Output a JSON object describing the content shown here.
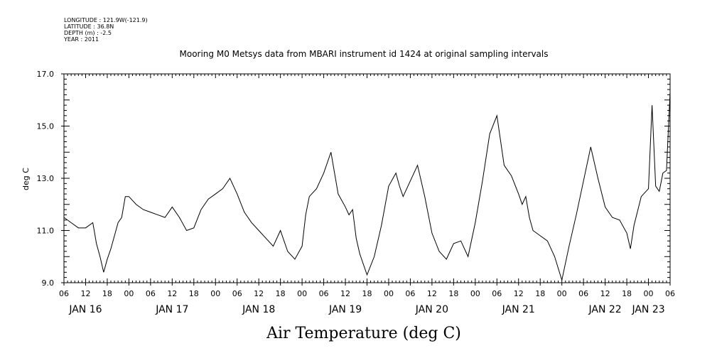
{
  "header": {
    "longitude": "LONGITUDE : 121.9W(-121.9)",
    "latitude": "LATITUDE : 36.8N",
    "depth": "DEPTH (m) : -2.5",
    "year": "YEAR : 2011"
  },
  "chart_data": {
    "type": "line",
    "title": "Mooring M0 Metsys data from MBARI instrument id 1424 at original sampling intervals",
    "xlabel": "Air Temperature (deg C)",
    "ylabel": "deg C",
    "ylim": [
      9.0,
      17.0
    ],
    "y_ticks": [
      "9.0",
      "11.0",
      "13.0",
      "15.0",
      "17.0"
    ],
    "x_range_hours": "2011-01-16 06:00 to 2011-01-23 06:00",
    "hour_tick_labels": [
      "06",
      "12",
      "18",
      "00",
      "06",
      "12",
      "18",
      "00",
      "06",
      "12",
      "18",
      "00",
      "06",
      "12",
      "18",
      "00",
      "06",
      "12",
      "18",
      "00",
      "06",
      "12",
      "18",
      "00",
      "06",
      "12",
      "18",
      "00",
      "06"
    ],
    "date_labels": [
      "JAN 16",
      "JAN 17",
      "JAN 18",
      "JAN 19",
      "JAN 20",
      "JAN 21",
      "JAN 22",
      "JAN 23"
    ],
    "grid": false,
    "series": [
      {
        "color": "#000000",
        "x": [
          "2011-01-16 06:00",
          "2011-01-16 08:00",
          "2011-01-16 10:00",
          "2011-01-16 12:00",
          "2011-01-16 14:00",
          "2011-01-16 15:00",
          "2011-01-16 16:00",
          "2011-01-16 17:00",
          "2011-01-16 18:00",
          "2011-01-16 19:00",
          "2011-01-16 20:00",
          "2011-01-16 21:00",
          "2011-01-16 22:00",
          "2011-01-16 23:00",
          "2011-01-17 00:00",
          "2011-01-17 02:00",
          "2011-01-17 04:00",
          "2011-01-17 06:00",
          "2011-01-17 08:00",
          "2011-01-17 10:00",
          "2011-01-17 12:00",
          "2011-01-17 14:00",
          "2011-01-17 16:00",
          "2011-01-17 18:00",
          "2011-01-17 20:00",
          "2011-01-17 22:00",
          "2011-01-18 00:00",
          "2011-01-18 02:00",
          "2011-01-18 04:00",
          "2011-01-18 06:00",
          "2011-01-18 08:00",
          "2011-01-18 10:00",
          "2011-01-18 12:00",
          "2011-01-18 14:00",
          "2011-01-18 16:00",
          "2011-01-18 18:00",
          "2011-01-18 20:00",
          "2011-01-18 22:00",
          "2011-01-19 00:00",
          "2011-01-19 01:00",
          "2011-01-19 02:00",
          "2011-01-19 04:00",
          "2011-01-19 06:00",
          "2011-01-19 08:00",
          "2011-01-19 10:00",
          "2011-01-19 12:00",
          "2011-01-19 13:00",
          "2011-01-19 14:00",
          "2011-01-19 15:00",
          "2011-01-19 16:00",
          "2011-01-19 18:00",
          "2011-01-19 20:00",
          "2011-01-19 22:00",
          "2011-01-20 00:00",
          "2011-01-20 02:00",
          "2011-01-20 03:00",
          "2011-01-20 04:00",
          "2011-01-20 06:00",
          "2011-01-20 08:00",
          "2011-01-20 10:00",
          "2011-01-20 12:00",
          "2011-01-20 14:00",
          "2011-01-20 16:00",
          "2011-01-20 18:00",
          "2011-01-20 20:00",
          "2011-01-20 22:00",
          "2011-01-21 00:00",
          "2011-01-21 02:00",
          "2011-01-21 04:00",
          "2011-01-21 06:00",
          "2011-01-21 08:00",
          "2011-01-21 10:00",
          "2011-01-21 12:00",
          "2011-01-21 13:00",
          "2011-01-21 14:00",
          "2011-01-21 15:00",
          "2011-01-21 16:00",
          "2011-01-21 18:00",
          "2011-01-21 20:00",
          "2011-01-21 22:00",
          "2011-01-22 00:00",
          "2011-01-22 02:00",
          "2011-01-22 04:00",
          "2011-01-22 06:00",
          "2011-01-22 08:00",
          "2011-01-22 10:00",
          "2011-01-22 12:00",
          "2011-01-22 14:00",
          "2011-01-22 16:00",
          "2011-01-22 18:00",
          "2011-01-22 19:00",
          "2011-01-22 20:00",
          "2011-01-22 22:00",
          "2011-01-23 00:00",
          "2011-01-23 01:00",
          "2011-01-23 02:00",
          "2011-01-23 03:00",
          "2011-01-23 04:00",
          "2011-01-23 05:00",
          "2011-01-23 06:00"
        ],
        "y": [
          11.5,
          11.3,
          11.1,
          11.1,
          11.3,
          10.5,
          10.0,
          9.4,
          9.9,
          10.3,
          10.8,
          11.3,
          11.5,
          12.3,
          12.3,
          12.0,
          11.8,
          11.7,
          11.6,
          11.5,
          11.9,
          11.5,
          11.0,
          11.1,
          11.8,
          12.2,
          12.4,
          12.6,
          13.0,
          12.4,
          11.7,
          11.3,
          11.0,
          10.7,
          10.4,
          11.0,
          10.2,
          9.9,
          10.4,
          11.6,
          12.3,
          12.6,
          13.2,
          14.0,
          12.4,
          11.9,
          11.6,
          11.8,
          10.7,
          10.1,
          9.3,
          10.0,
          11.2,
          12.7,
          13.2,
          12.7,
          12.3,
          12.9,
          13.5,
          12.3,
          10.9,
          10.2,
          9.9,
          10.5,
          10.6,
          10.0,
          11.3,
          12.9,
          14.7,
          15.4,
          13.5,
          13.1,
          12.4,
          12.0,
          12.3,
          11.5,
          11.0,
          10.8,
          10.6,
          10.0,
          9.1,
          10.4,
          11.6,
          12.9,
          14.2,
          13.0,
          11.9,
          11.5,
          11.4,
          10.9,
          10.3,
          11.2,
          12.3,
          12.6,
          15.8,
          12.7,
          12.5,
          13.2,
          13.3,
          16.3
        ]
      }
    ]
  }
}
